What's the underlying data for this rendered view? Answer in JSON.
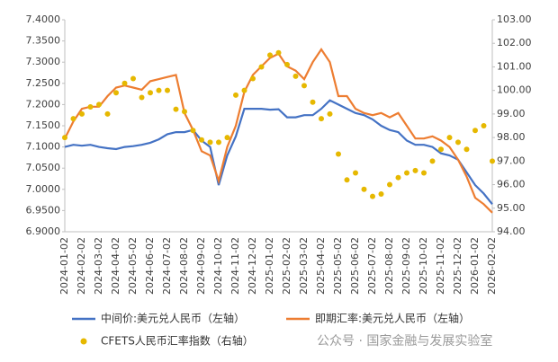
{
  "chart_data": {
    "type": "line",
    "categories": [
      "2024-01-02",
      null,
      "2024-02-02",
      null,
      "2024-03-02",
      null,
      "2024-04-02",
      null,
      "2024-05-02",
      null,
      "2024-06-02",
      null,
      "2024-07-02",
      null,
      "2024-08-02",
      null,
      "2024-09-02",
      null,
      "2024-10-02",
      null,
      "2024-11-02",
      null,
      "2024-12-02",
      null,
      "2025-01-02",
      null,
      "2025-02-02",
      null,
      "2025-03-02",
      null,
      "2025-04-02",
      null,
      "2025-05-02",
      null,
      "2025-06-02",
      null,
      "2025-07-02",
      null,
      "2025-08-02",
      null,
      "2025-09-02",
      null,
      "2025-10-02",
      null,
      "2025-11-02",
      null,
      "2025-12-02",
      null,
      "2026-01-02",
      null,
      "2026-02-02"
    ],
    "series": [
      {
        "name": "中间价:美元兑人民币（左轴）",
        "color": "#4472c4",
        "values": [
          7.1,
          7.105,
          7.103,
          7.105,
          7.1,
          7.097,
          7.095,
          7.1,
          7.102,
          7.105,
          7.11,
          7.118,
          7.13,
          7.135,
          7.135,
          7.14,
          7.115,
          7.1,
          7.01,
          7.08,
          7.125,
          7.19,
          7.19,
          7.19,
          7.188,
          7.189,
          7.17,
          7.17,
          7.175,
          7.175,
          7.19,
          7.21,
          7.2,
          7.19,
          7.18,
          7.175,
          7.165,
          7.15,
          7.14,
          7.135,
          7.115,
          7.105,
          7.105,
          7.1,
          7.085,
          7.08,
          7.07,
          7.04,
          7.01,
          6.99,
          6.965
        ]
      },
      {
        "name": "即期汇率:美元兑人民币（左轴）",
        "color": "#ed7d31",
        "values": [
          7.12,
          7.16,
          7.19,
          7.195,
          7.195,
          7.22,
          7.24,
          7.245,
          7.24,
          7.235,
          7.255,
          7.26,
          7.265,
          7.27,
          7.18,
          7.14,
          7.09,
          7.08,
          7.02,
          7.1,
          7.15,
          7.23,
          7.27,
          7.29,
          7.31,
          7.32,
          7.29,
          7.28,
          7.26,
          7.3,
          7.33,
          7.3,
          7.22,
          7.22,
          7.19,
          7.18,
          7.175,
          7.18,
          7.17,
          7.18,
          7.15,
          7.12,
          7.12,
          7.125,
          7.115,
          7.1,
          7.07,
          7.03,
          6.98,
          6.965,
          6.945
        ]
      },
      {
        "name": "CFETS人民币汇率指数（右轴）",
        "color": "#e6b800",
        "type": "scatter",
        "axis": "y2",
        "values": [
          98.0,
          98.8,
          99.0,
          99.3,
          99.4,
          99.0,
          99.9,
          100.3,
          100.5,
          99.7,
          99.9,
          100.0,
          100.0,
          99.2,
          99.1,
          98.3,
          97.9,
          97.8,
          97.8,
          98.0,
          99.8,
          100.0,
          100.5,
          101.0,
          101.5,
          101.6,
          101.1,
          100.6,
          100.2,
          99.5,
          98.8,
          99.0,
          97.3,
          96.2,
          96.5,
          95.8,
          95.5,
          95.6,
          96.0,
          96.3,
          96.5,
          96.6,
          96.5,
          97.0,
          97.5,
          98.0,
          97.8,
          97.5,
          98.3,
          98.5,
          97.0
        ]
      }
    ],
    "ylim": [
      6.9,
      7.4
    ],
    "yticks": [
      {
        "value": 6.9,
        "label": "6.9000"
      },
      {
        "value": 6.95,
        "label": "6.9500"
      },
      {
        "value": 7.0,
        "label": "7.0000"
      },
      {
        "value": 7.05,
        "label": "7.0500"
      },
      {
        "value": 7.1,
        "label": "7.1000"
      },
      {
        "value": 7.15,
        "label": "7.1500"
      },
      {
        "value": 7.2,
        "label": "7.2000"
      },
      {
        "value": 7.25,
        "label": "7.2500"
      },
      {
        "value": 7.3,
        "label": "7.3000"
      },
      {
        "value": 7.35,
        "label": "7.3500"
      },
      {
        "value": 7.4,
        "label": "7.4000"
      }
    ],
    "y2lim": [
      94,
      103
    ],
    "y2ticks": [
      {
        "value": 94,
        "label": "94.00"
      },
      {
        "value": 95,
        "label": "95.00"
      },
      {
        "value": 96,
        "label": "96.00"
      },
      {
        "value": 97,
        "label": "97.00"
      },
      {
        "value": 98,
        "label": "98.00"
      },
      {
        "value": 99,
        "label": "99.00"
      },
      {
        "value": 100,
        "label": "100.00"
      },
      {
        "value": 101,
        "label": "101.00"
      },
      {
        "value": 102,
        "label": "102.00"
      },
      {
        "value": 103,
        "label": "103.00"
      }
    ],
    "watermark": "公众号 · 国家金融与发展实验室"
  }
}
